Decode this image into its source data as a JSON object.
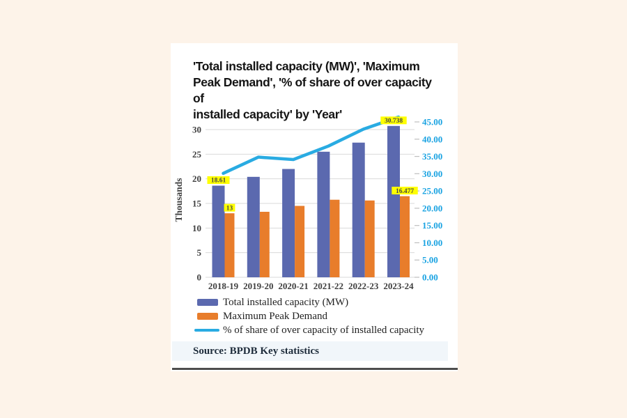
{
  "title": {
    "full_text": "'Total installed capacity (MW)', 'Maximum Peak Demand', '% of share of over capacity of installed capacity' by 'Year'",
    "lines": [
      "'Total installed capacity (MW)', 'Maximum",
      "Peak Demand', '% of share of over capacity of",
      "installed capacity' by 'Year'"
    ]
  },
  "chart_data": {
    "type": "bar",
    "subtype": "combo-bar-line",
    "categories": [
      "2018-19",
      "2019-20",
      "2020-21",
      "2021-22",
      "2022-23",
      "2023-24"
    ],
    "series": [
      {
        "name": "Total installed capacity (MW)",
        "type": "bar",
        "axis": "left",
        "color": "#5B69AF",
        "values": [
          18.61,
          20.4,
          22.0,
          25.5,
          27.35,
          30.738
        ]
      },
      {
        "name": "Maximum Peak Demand",
        "type": "bar",
        "axis": "left",
        "color": "#E87D2B",
        "values": [
          13,
          13.3,
          14.5,
          15.75,
          15.6,
          16.477
        ]
      },
      {
        "name": "% of share of over capacity of installed capacity",
        "type": "line",
        "axis": "right",
        "color": "#29ABE2",
        "values": [
          30.1,
          34.8,
          34.1,
          38.0,
          42.9,
          46.4
        ]
      }
    ],
    "data_labels": [
      {
        "series": 0,
        "index": 0,
        "text": "18.61"
      },
      {
        "series": 1,
        "index": 0,
        "text": "13"
      },
      {
        "series": 0,
        "index": 5,
        "text": "30.738"
      },
      {
        "series": 1,
        "index": 5,
        "text": "16.477"
      }
    ],
    "data_label_style": {
      "background": "#FFFF00",
      "text_color": "#454545"
    },
    "left_axis": {
      "title": "Thousands",
      "min": 0,
      "max": 30,
      "step": 5,
      "tick_labels": [
        "0",
        "5",
        "10",
        "15",
        "20",
        "25",
        "30"
      ],
      "text_color": "#3F3F3F"
    },
    "right_axis": {
      "min": 0,
      "max": 45,
      "step": 5,
      "tick_labels": [
        "0.00",
        "5.00",
        "10.00",
        "15.00",
        "20.00",
        "25.00",
        "30.00",
        "35.00",
        "40.00",
        "45.00"
      ],
      "text_color": "#1AA3E2"
    },
    "grid": true,
    "gridline_color": "#D9D9D9",
    "legend_position": "bottom-left"
  },
  "source": {
    "text": "Source: BPDB Key statistics"
  },
  "colors": {
    "page_background": "#FDF3E9",
    "card_background": "#FFFFFF",
    "source_strip_background": "#F1F6FA",
    "bottom_rule": "#4D4D4D"
  }
}
